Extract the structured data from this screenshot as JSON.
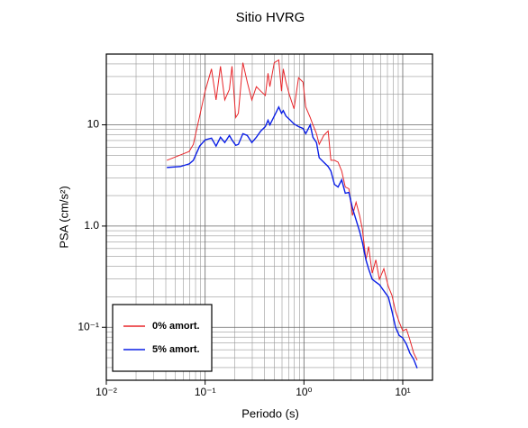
{
  "chart_data": {
    "type": "line",
    "title": "Sitio HVRG",
    "xlabel": "Periodo (s)",
    "ylabel": "PSA (cm/s²)",
    "log_x": true,
    "log_y": true,
    "grid": true,
    "legend": "lower left",
    "xlim": [
      0.01,
      20
    ],
    "ylim": [
      0.03,
      50
    ],
    "xticks": [
      {
        "value": 0.01,
        "label": "10⁻²"
      },
      {
        "value": 0.1,
        "label": "10⁻¹"
      },
      {
        "value": 1,
        "label": "10⁰"
      },
      {
        "value": 10,
        "label": "10¹"
      }
    ],
    "yticks": [
      {
        "value": 0.1,
        "label": "10⁻¹"
      },
      {
        "value": 1,
        "label": "1.0"
      },
      10
    ],
    "xminor": [
      0.02,
      0.03,
      0.04,
      0.05,
      0.06,
      0.07,
      0.08,
      0.09,
      0.2,
      0.3,
      0.4,
      0.5,
      0.6,
      0.7,
      0.8,
      0.9,
      2,
      3,
      4,
      5,
      6,
      7,
      8,
      9,
      20
    ],
    "yminor": [
      0.04,
      0.05,
      0.06,
      0.07,
      0.08,
      0.09,
      0.2,
      0.3,
      0.4,
      0.5,
      0.6,
      0.7,
      0.8,
      0.9,
      2,
      3,
      4,
      5,
      6,
      7,
      8,
      9,
      20,
      30,
      40
    ],
    "x": [
      0.041,
      0.056,
      0.069,
      0.076,
      0.088,
      0.1,
      0.116,
      0.129,
      0.143,
      0.158,
      0.176,
      0.187,
      0.204,
      0.217,
      0.241,
      0.267,
      0.297,
      0.33,
      0.366,
      0.407,
      0.433,
      0.452,
      0.501,
      0.556,
      0.593,
      0.618,
      0.658,
      0.716,
      0.794,
      0.882,
      0.979,
      1.043,
      1.158,
      1.233,
      1.34,
      1.427,
      1.585,
      1.759,
      1.874,
      2.037,
      2.214,
      2.41,
      2.62,
      2.85,
      3.1,
      3.37,
      3.66,
      3.9,
      4.24,
      4.51,
      4.91,
      5.34,
      5.8,
      6.44,
      7.15,
      7.78,
      8.46,
      9.2,
      10,
      10.9,
      11.8,
      12.9,
      14
    ],
    "series": [
      {
        "name": "0% amort.",
        "color": "#e8262a",
        "values": [
          4.46,
          5.03,
          5.46,
          6.41,
          12.2,
          21.5,
          35.7,
          17.6,
          37.9,
          17.6,
          22.4,
          37.9,
          11.8,
          13,
          41.1,
          26.4,
          17.6,
          23.8,
          21.5,
          19.5,
          32.3,
          23.8,
          41.1,
          43.7,
          21.5,
          35.7,
          26.4,
          19.5,
          14.4,
          29.2,
          26.4,
          15,
          11.8,
          10,
          8.17,
          6.41,
          7.85,
          8.69,
          4.46,
          4.46,
          4.28,
          3.5,
          2.43,
          2.34,
          1.27,
          1.72,
          1.27,
          0.94,
          0.464,
          0.628,
          0.343,
          0.464,
          0.298,
          0.379,
          0.253,
          0.207,
          0.144,
          0.113,
          0.0922,
          0.096,
          0.0754,
          0.0557,
          0.0473
        ]
      },
      {
        "name": "5% amort.",
        "color": "#0a1ee6",
        "values": [
          3.79,
          3.87,
          4.11,
          4.46,
          6.16,
          7.1,
          7.39,
          6.16,
          7.54,
          6.68,
          7.85,
          7.1,
          6.28,
          6.41,
          8.17,
          7.85,
          6.68,
          7.54,
          8.69,
          9.6,
          11.1,
          10,
          12.2,
          15,
          13,
          13.8,
          12.2,
          11.3,
          10.2,
          9.6,
          9.2,
          8.17,
          10,
          7.54,
          6.68,
          4.73,
          4.28,
          3.87,
          3.5,
          2.58,
          2.43,
          2.86,
          2.11,
          2.15,
          1.5,
          1.15,
          0.886,
          0.695,
          0.464,
          0.379,
          0.298,
          0.28,
          0.264,
          0.229,
          0.199,
          0.144,
          0.1,
          0.083,
          0.0785,
          0.068,
          0.0557,
          0.0483,
          0.0395
        ]
      }
    ]
  }
}
